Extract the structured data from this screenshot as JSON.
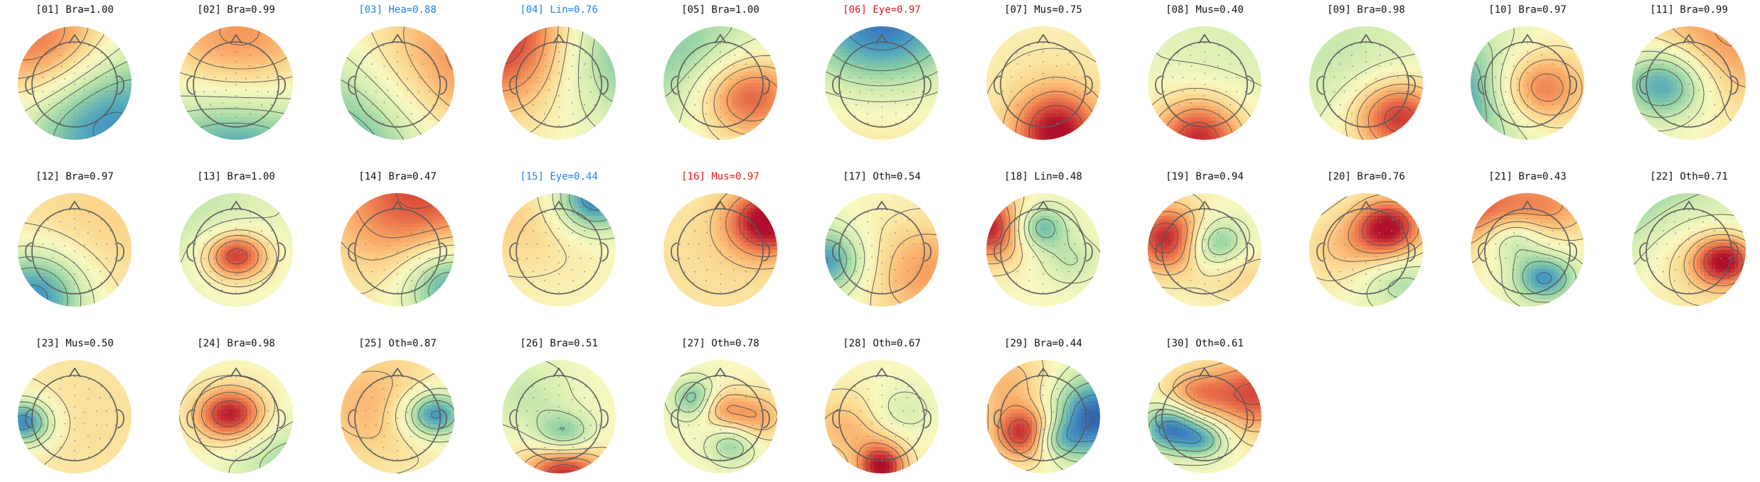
{
  "figure": {
    "label_colors": {
      "default": "#111111",
      "blue": "#1a82e6",
      "red": "#e6141e"
    },
    "colormap": [
      "#3060b8",
      "#4ba0c0",
      "#8fd0a4",
      "#d2ecb0",
      "#f8f8c0",
      "#fcd890",
      "#f8a060",
      "#e05840",
      "#b0102c"
    ],
    "contour_color": "#505050",
    "sensor_dot_color": "#8a8a8a",
    "components": [
      {
        "id": "[01] Bra=1.00",
        "label_color": "default",
        "maps": [
          [
            0.3,
            0.2,
            0.55,
            1.0,
            0.5
          ],
          [
            0.72,
            0.7,
            0.95,
            -1.0,
            0.55
          ]
        ]
      },
      {
        "id": "[02] Bra=0.99",
        "label_color": "default",
        "maps": [
          [
            0.52,
            0.28,
            0.75,
            0.95,
            0.55
          ],
          [
            0.5,
            0.95,
            1.0,
            -1.0,
            0.6
          ]
        ]
      },
      {
        "id": "[03] Hea=0.88",
        "label_color": "blue",
        "maps": [
          [
            0.9,
            0.45,
            0.6,
            0.8,
            0.7
          ],
          [
            0.15,
            0.95,
            0.7,
            -0.9,
            0.7
          ]
        ]
      },
      {
        "id": "[04] Lin=0.76",
        "label_color": "blue",
        "maps": [
          [
            0.1,
            0.1,
            0.8,
            1.0,
            0.5
          ],
          [
            0.95,
            0.2,
            0.7,
            -0.7,
            0.5
          ]
        ]
      },
      {
        "id": "[05] Bra=1.00",
        "label_color": "default",
        "maps": [
          [
            0.72,
            0.6,
            0.5,
            1.0,
            0.35
          ],
          [
            0.25,
            0.3,
            0.6,
            -0.6,
            0.55
          ]
        ]
      },
      {
        "id": "[06] Eye=0.97",
        "label_color": "red",
        "maps": [
          [
            0.5,
            0.0,
            0.5,
            -1.0,
            0.55
          ],
          [
            0.5,
            0.7,
            0.35,
            0.2,
            0.8
          ]
        ]
      },
      {
        "id": "[07] Mus=0.75",
        "label_color": "default",
        "maps": [
          [
            0.62,
            0.95,
            1.0,
            1.0,
            0.28
          ],
          [
            0.5,
            0.4,
            0.4,
            0.1,
            0.8
          ]
        ]
      },
      {
        "id": "[08] Mus=0.40",
        "label_color": "default",
        "maps": [
          [
            0.45,
            1.0,
            0.9,
            1.0,
            0.3
          ],
          [
            0.7,
            0.3,
            0.5,
            -0.2,
            0.7
          ]
        ]
      },
      {
        "id": "[09] Bra=0.98",
        "label_color": "default",
        "maps": [
          [
            0.78,
            0.8,
            0.6,
            1.0,
            0.3
          ],
          [
            0.3,
            0.3,
            0.5,
            -0.3,
            0.7
          ]
        ]
      },
      {
        "id": "[10] Bra=0.97",
        "label_color": "default",
        "maps": [
          [
            0.55,
            0.55,
            0.45,
            1.0,
            0.32
          ],
          [
            0.05,
            0.6,
            0.6,
            -0.9,
            0.45
          ]
        ]
      },
      {
        "id": "[11] Bra=0.99",
        "label_color": "default",
        "maps": [
          [
            0.3,
            0.5,
            0.5,
            -1.0,
            0.3
          ],
          [
            0.7,
            0.2,
            0.6,
            0.6,
            0.5
          ]
        ]
      },
      {
        "id": "[12] Bra=0.97",
        "label_color": "default",
        "maps": [
          [
            0.15,
            0.9,
            0.7,
            -1.0,
            0.35
          ],
          [
            0.6,
            0.4,
            0.5,
            0.3,
            0.8
          ]
        ]
      },
      {
        "id": "[13] Bra=1.00",
        "label_color": "default",
        "maps": [
          [
            0.5,
            0.55,
            0.4,
            1.0,
            0.2
          ],
          [
            0.1,
            0.1,
            0.5,
            -0.3,
            0.6
          ]
        ]
      },
      {
        "id": "[14] Bra=0.47",
        "label_color": "default",
        "maps": [
          [
            0.7,
            0.0,
            0.8,
            0.8,
            0.6
          ],
          [
            0.95,
            0.8,
            0.7,
            -0.9,
            0.3
          ]
        ]
      },
      {
        "id": "[15] Eye=0.44",
        "label_color": "blue",
        "maps": [
          [
            0.8,
            0.05,
            0.6,
            -1.0,
            0.25
          ],
          [
            0.2,
            0.2,
            0.5,
            0.3,
            0.5
          ]
        ]
      },
      {
        "id": "[16] Mus=0.97",
        "label_color": "red",
        "maps": [
          [
            0.92,
            0.25,
            0.6,
            1.0,
            0.25
          ],
          [
            0.4,
            0.6,
            0.4,
            0.2,
            0.8
          ]
        ]
      },
      {
        "id": "[17] Oth=0.54",
        "label_color": "default",
        "maps": [
          [
            0.0,
            0.6,
            0.6,
            -0.8,
            0.25
          ],
          [
            0.9,
            0.7,
            0.6,
            0.5,
            0.4
          ]
        ]
      },
      {
        "id": "[18] Lin=0.48",
        "label_color": "default",
        "maps": [
          [
            0.05,
            0.3,
            0.6,
            1.0,
            0.25
          ],
          [
            0.45,
            0.3,
            0.5,
            -0.8,
            0.18
          ],
          [
            0.75,
            0.6,
            0.3,
            -0.3,
            0.2
          ]
        ]
      },
      {
        "id": "[19] Bra=0.94",
        "label_color": "default",
        "maps": [
          [
            0.2,
            0.4,
            0.6,
            1.0,
            0.25
          ],
          [
            0.58,
            0.45,
            0.5,
            -0.8,
            0.2
          ],
          [
            0.8,
            0.7,
            0.4,
            0.3,
            0.25
          ]
        ]
      },
      {
        "id": "[20] Bra=0.76",
        "label_color": "default",
        "maps": [
          [
            0.7,
            0.3,
            0.6,
            1.0,
            0.22
          ],
          [
            0.3,
            0.5,
            0.4,
            0.3,
            0.3
          ],
          [
            0.8,
            0.8,
            0.3,
            -0.4,
            0.25
          ]
        ]
      },
      {
        "id": "[21] Bra=0.43",
        "label_color": "default",
        "maps": [
          [
            0.35,
            0.4,
            0.4,
            -0.6,
            0.2
          ],
          [
            0.65,
            0.75,
            0.4,
            -0.8,
            0.2
          ],
          [
            0.1,
            0.2,
            0.6,
            0.7,
            0.3
          ],
          [
            0.7,
            0.1,
            0.4,
            0.5,
            0.3
          ]
        ]
      },
      {
        "id": "[22] Oth=0.71",
        "label_color": "default",
        "maps": [
          [
            0.82,
            0.6,
            0.5,
            1.0,
            0.2
          ],
          [
            0.5,
            0.5,
            1.0,
            0.4,
            0.4
          ],
          [
            0.0,
            0.0,
            0.0,
            -0.6,
            0.9
          ]
        ]
      },
      {
        "id": "[23] Mus=0.50",
        "label_color": "default",
        "maps": [
          [
            0.05,
            0.55,
            0.5,
            -1.0,
            0.18
          ],
          [
            0.6,
            0.5,
            0.4,
            0.2,
            0.8
          ]
        ]
      },
      {
        "id": "[24] Bra=0.98",
        "label_color": "default",
        "maps": [
          [
            0.45,
            0.48,
            0.4,
            1.0,
            0.22
          ],
          [
            0.95,
            0.9,
            0.4,
            -0.4,
            0.35
          ]
        ]
      },
      {
        "id": "[25] Oth=0.87",
        "label_color": "default",
        "maps": [
          [
            0.82,
            0.48,
            0.4,
            -1.0,
            0.2
          ],
          [
            0.3,
            0.4,
            0.5,
            0.4,
            0.5
          ]
        ]
      },
      {
        "id": "[26] Bra=0.51",
        "label_color": "default",
        "maps": [
          [
            0.55,
            0.95,
            0.9,
            1.0,
            0.25
          ],
          [
            0.55,
            0.68,
            0.35,
            -0.9,
            0.2
          ],
          [
            0.2,
            0.3,
            0.5,
            -0.3,
            0.3
          ]
        ]
      },
      {
        "id": "[27] Oth=0.78",
        "label_color": "default",
        "maps": [
          [
            0.3,
            0.35,
            0.6,
            -0.8,
            0.15
          ],
          [
            0.45,
            0.4,
            0.5,
            0.6,
            0.15
          ],
          [
            0.6,
            0.75,
            0.5,
            -0.5,
            0.15
          ],
          [
            0.8,
            0.5,
            0.4,
            0.5,
            0.2
          ]
        ]
      },
      {
        "id": "[28] Oth=0.67",
        "label_color": "default",
        "maps": [
          [
            0.5,
            0.95,
            0.9,
            1.0,
            0.15
          ],
          [
            0.65,
            0.45,
            0.4,
            -0.3,
            0.2
          ],
          [
            0.2,
            0.6,
            0.4,
            0.4,
            0.3
          ]
        ]
      },
      {
        "id": "[29] Bra=0.44",
        "label_color": "default",
        "maps": [
          [
            0.35,
            0.65,
            0.6,
            1.0,
            0.2
          ],
          [
            0.95,
            0.5,
            0.7,
            -1.0,
            0.3
          ],
          [
            0.6,
            0.7,
            0.4,
            -0.5,
            0.15
          ],
          [
            0.2,
            0.2,
            0.4,
            0.4,
            0.3
          ]
        ]
      },
      {
        "id": "[30] Oth=0.61",
        "label_color": "default",
        "maps": [
          [
            0.2,
            0.6,
            0.6,
            -0.9,
            0.18
          ],
          [
            0.5,
            0.7,
            0.5,
            -0.6,
            0.15
          ],
          [
            0.95,
            0.3,
            0.5,
            0.8,
            0.3
          ],
          [
            0.4,
            0.3,
            0.4,
            0.5,
            0.2
          ]
        ]
      }
    ]
  }
}
